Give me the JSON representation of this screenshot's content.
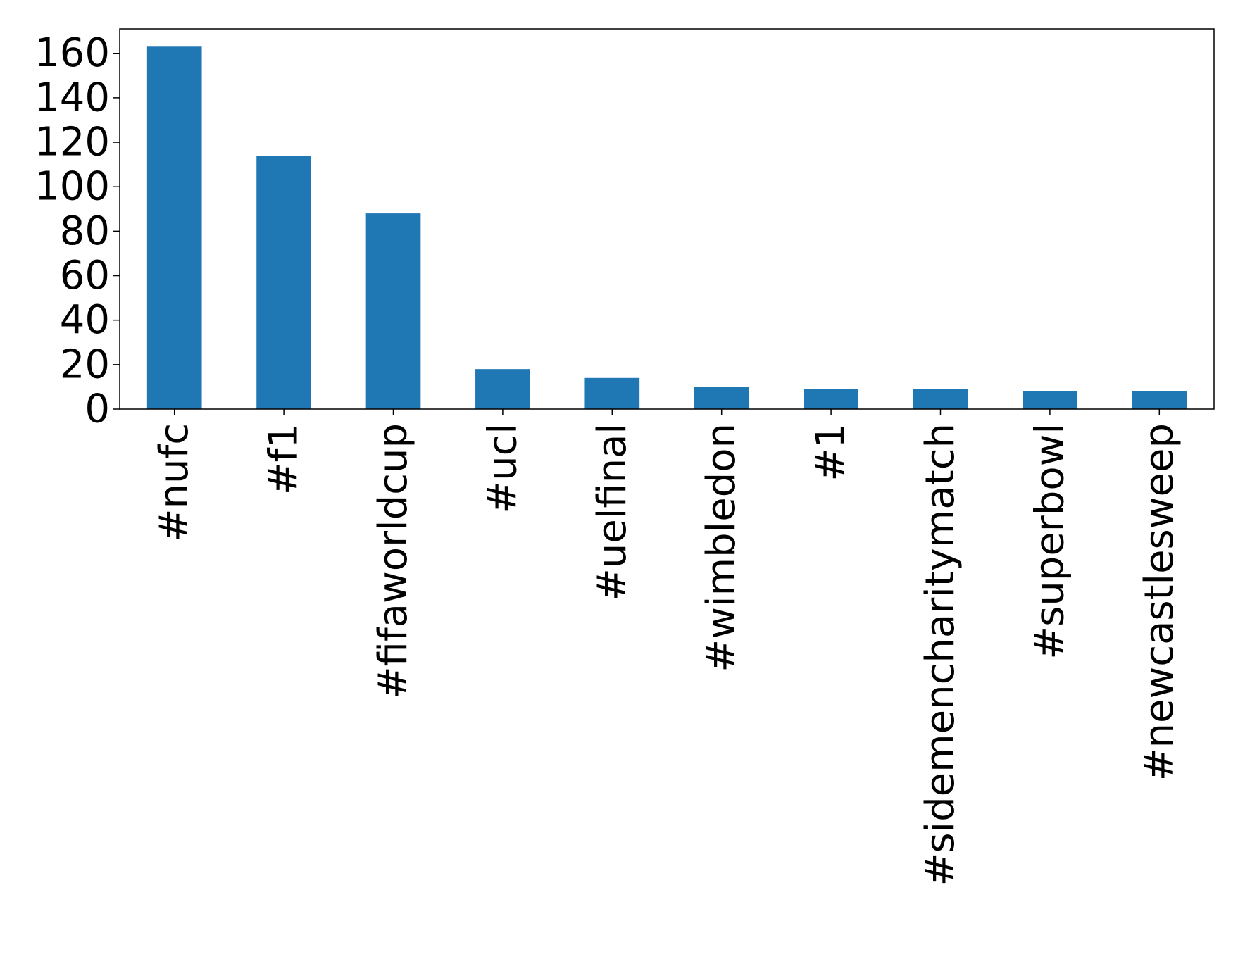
{
  "chart_data": {
    "type": "bar",
    "title": "",
    "xlabel": "",
    "ylabel": "",
    "categories": [
      "#nufc",
      "#f1",
      "#fifaworldcup",
      "#ucl",
      "#uelfinal",
      "#wimbledon",
      "#1",
      "#sidemencharitymatch",
      "#superbowl",
      "#newcastlesweep"
    ],
    "values": [
      163,
      114,
      88,
      18,
      14,
      10,
      9,
      9,
      8,
      8
    ],
    "ylim": [
      0,
      171
    ],
    "yticks": [
      0,
      20,
      40,
      60,
      80,
      100,
      120,
      140,
      160
    ],
    "grid": false,
    "color": "#1f77b4"
  }
}
